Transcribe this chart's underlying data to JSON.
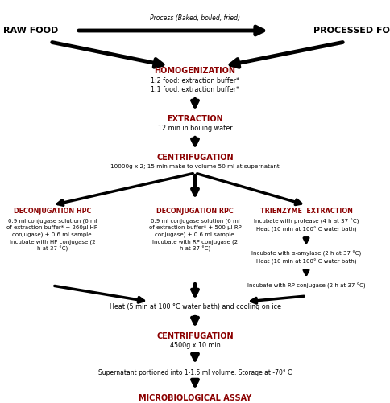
{
  "background_color": "#ffffff",
  "bold_color": "#8B0000",
  "black": "#000000",
  "process_label": "Process (Baked, boiled, fried)",
  "raw_food": "RAW FOOD",
  "processed_food": "PROCESSED FOOD",
  "homogenization_title": "HOMOGENIZATION",
  "homogenization_sub1": "1:2 food: extraction buffer*",
  "homogenization_sub2": "1:1 food: extraction buffer*",
  "extraction_title": "EXTRACTION",
  "extraction_sub": "12 min in boiling water",
  "centrifugation1_title": "CENTRIFUGATION",
  "centrifugation1_sub": "10000g x 2; 15 min make to volume 50 ml at supernatant",
  "deconj_hpc_title": "DECONJUGATION HPC",
  "deconj_hpc_sub": "0.9 ml conjugase solution (6 ml\nof extraction buffer* + 260μl HP\nconjugase) + 0.6 ml sample.\nIncubate with HP conjugase (2\nh at 37 °C)",
  "deconj_rpc_title": "DECONJUGATION RPC",
  "deconj_rpc_sub": "0.9 ml conjugase solution (6 ml\nof extraction buffer* + 500 μl RP\nconjugase) + 0.6 ml sample.\nIncubate with RP conjugase (2\nh at 37 °C)",
  "trienzyme_title": "TRIENZYME  EXTRACTION",
  "trienzyme_line1": "Incubate with protease (4 h at 37 °C)",
  "trienzyme_line2": "Heat (10 min at 100° C water bath)",
  "trienzyme_line3": "Incubate with α-amylase (2 h at 37 °C)",
  "trienzyme_line4": "Heat (10 min at 100° C water bath)",
  "trienzyme_line5": "Incubate with RP conjugase (2 h at 37 °C)",
  "heat_text": "Heat (5 min at 100 °C water bath) and cooling on ice",
  "centrifugation2_title": "CENTRIFUGATION",
  "centrifugation2_sub": "4500g x 10 min",
  "storage_text": "Supernatant portioned into 1-1.5 ml volume. Storage at -70° C",
  "microbiological": "MICROBIOLOGICAL ASSAY"
}
